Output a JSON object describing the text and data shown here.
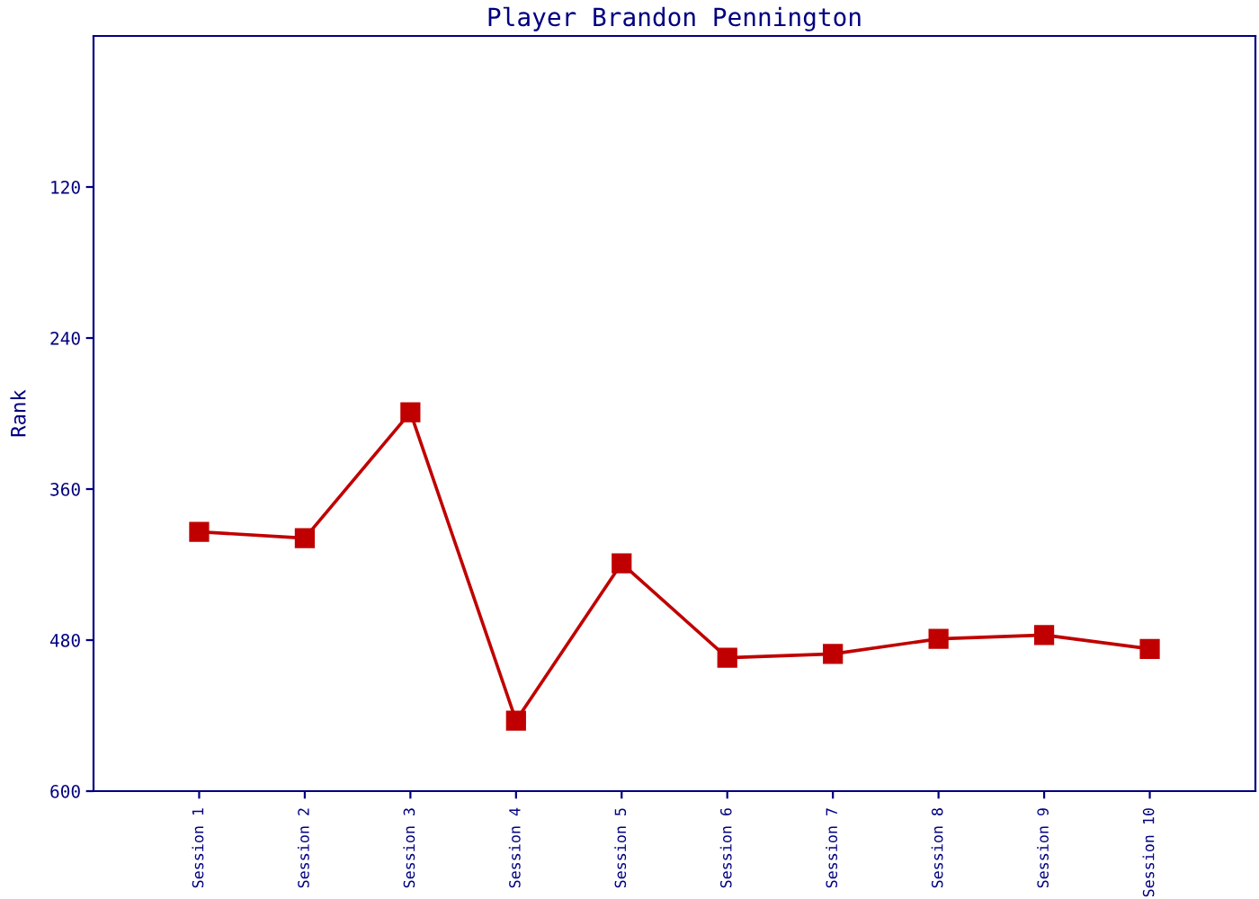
{
  "chart_data": {
    "type": "line",
    "title": "Player Brandon Pennington",
    "ylabel": "Rank",
    "categories": [
      "Session 1",
      "Session 2",
      "Session 3",
      "Session 4",
      "Session 5",
      "Session 6",
      "Session 7",
      "Session 8",
      "Session 9",
      "Session 10"
    ],
    "series": [
      {
        "color": "#c00000",
        "values": [
          394,
          399,
          299,
          544,
          419,
          494,
          491,
          479,
          476,
          487
        ]
      }
    ],
    "ylim": [
      600,
      0
    ],
    "yticks": [
      120,
      240,
      360,
      480,
      600
    ],
    "grid": false,
    "legend": false,
    "marker": "square",
    "line_style": "solid"
  }
}
